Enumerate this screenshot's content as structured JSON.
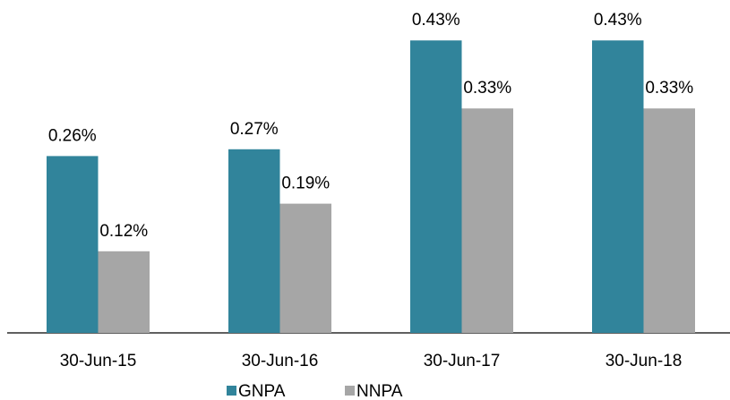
{
  "chart_data": {
    "type": "bar",
    "categories": [
      "30-Jun-15",
      "30-Jun-16",
      "30-Jun-17",
      "30-Jun-18"
    ],
    "series": [
      {
        "name": "GNPA",
        "color": "#31849b",
        "values": [
          0.26,
          0.27,
          0.43,
          0.43
        ],
        "value_labels": [
          "0.26%",
          "0.27%",
          "0.43%",
          "0.43%"
        ]
      },
      {
        "name": "NNPA",
        "color": "#a6a6a6",
        "values": [
          0.12,
          0.19,
          0.33,
          0.33
        ],
        "value_labels": [
          "0.12%",
          "0.19%",
          "0.33%",
          "0.33%"
        ]
      }
    ],
    "legend": "bottom"
  }
}
